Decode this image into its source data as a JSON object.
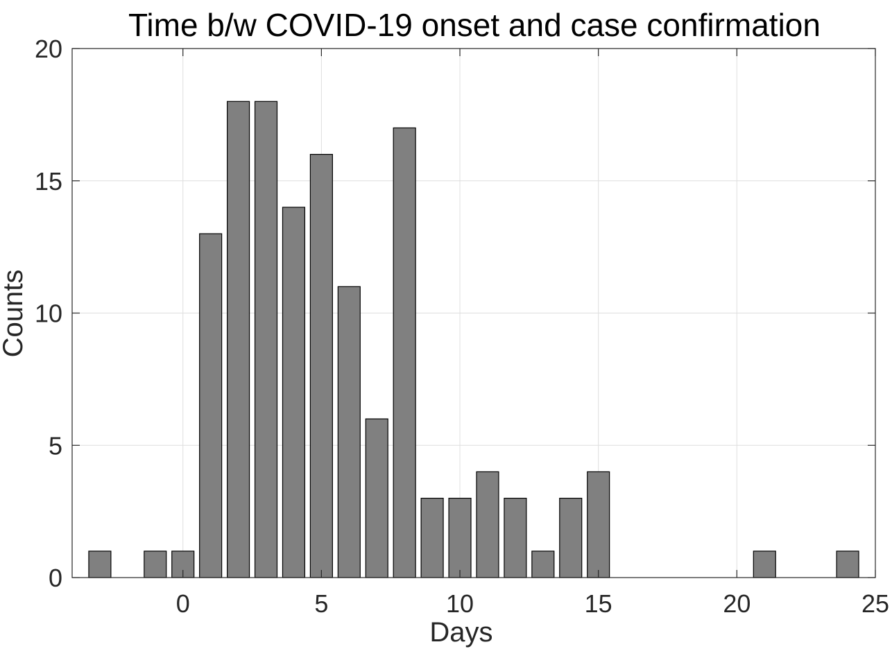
{
  "chart_data": {
    "type": "bar",
    "title": "Time b/w COVID-19 onset and case confirmation",
    "xlabel": "Days",
    "ylabel": "Counts",
    "x": [
      -3,
      -1,
      0,
      1,
      2,
      3,
      4,
      5,
      6,
      7,
      8,
      9,
      10,
      11,
      12,
      13,
      14,
      15,
      21,
      24
    ],
    "values": [
      1,
      1,
      1,
      13,
      18,
      18,
      14,
      16,
      11,
      6,
      17,
      3,
      3,
      4,
      3,
      1,
      3,
      4,
      1,
      1
    ],
    "xlim": [
      -4,
      25
    ],
    "ylim": [
      0,
      20
    ],
    "xticks": [
      0,
      5,
      10,
      15,
      20,
      25
    ],
    "yticks": [
      0,
      5,
      10,
      15,
      20
    ],
    "xtick_labels": [
      "0",
      "5",
      "10",
      "15",
      "20",
      "25"
    ],
    "ytick_labels": [
      "0",
      "5",
      "10",
      "15",
      "20"
    ],
    "grid": true,
    "legend": "none",
    "bar_color": "#808080",
    "bar_edge_color": "#000000",
    "grid_color": "#dedede",
    "axis_color": "#262626"
  }
}
